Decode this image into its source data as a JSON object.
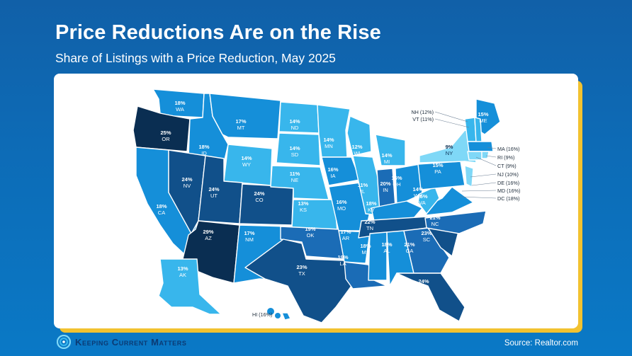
{
  "title": "Price Reductions Are on the Rise",
  "subtitle": "Share of Listings with a Price Reduction, May 2025",
  "source": "Source: Realtor.com",
  "logo_text": "Keeping Current Matters",
  "colors": {
    "background": "#0d6bb6",
    "accent": "#f2c230",
    "shades": [
      "#7fd8f7",
      "#38b6ec",
      "#158fd9",
      "#1b6cb6",
      "#11508a",
      "#0a2e52"
    ]
  },
  "chart_data": {
    "type": "choropleth",
    "states": [
      {
        "code": "WA",
        "value": 18,
        "label": "18%"
      },
      {
        "code": "OR",
        "value": 25,
        "label": "25%"
      },
      {
        "code": "CA",
        "value": 18,
        "label": "18%"
      },
      {
        "code": "ID",
        "value": 18,
        "label": "18%"
      },
      {
        "code": "NV",
        "value": 24,
        "label": "24%"
      },
      {
        "code": "MT",
        "value": 17,
        "label": "17%"
      },
      {
        "code": "WY",
        "value": 14,
        "label": "14%"
      },
      {
        "code": "UT",
        "value": 24,
        "label": "24%"
      },
      {
        "code": "AZ",
        "value": 29,
        "label": "29%"
      },
      {
        "code": "CO",
        "value": 24,
        "label": "24%"
      },
      {
        "code": "NM",
        "value": 17,
        "label": "17%"
      },
      {
        "code": "ND",
        "value": 14,
        "label": "14%"
      },
      {
        "code": "SD",
        "value": 14,
        "label": "14%"
      },
      {
        "code": "NE",
        "value": 11,
        "label": "11%"
      },
      {
        "code": "KS",
        "value": 13,
        "label": "13%"
      },
      {
        "code": "OK",
        "value": 19,
        "label": "19%"
      },
      {
        "code": "TX",
        "value": 23,
        "label": "23%"
      },
      {
        "code": "MN",
        "value": 14,
        "label": "14%"
      },
      {
        "code": "IA",
        "value": 16,
        "label": "16%"
      },
      {
        "code": "MO",
        "value": 16,
        "label": "16%"
      },
      {
        "code": "AR",
        "value": 17,
        "label": "17%"
      },
      {
        "code": "LA",
        "value": 19,
        "label": "19%"
      },
      {
        "code": "WI",
        "value": 12,
        "label": "12%"
      },
      {
        "code": "IL",
        "value": 11,
        "label": "11%"
      },
      {
        "code": "MI",
        "value": 14,
        "label": "14%"
      },
      {
        "code": "IN",
        "value": 20,
        "label": "20%"
      },
      {
        "code": "OH",
        "value": 16,
        "label": "16%"
      },
      {
        "code": "KY",
        "value": 18,
        "label": "18%"
      },
      {
        "code": "TN",
        "value": 22,
        "label": "22%"
      },
      {
        "code": "MS",
        "value": 18,
        "label": "18%"
      },
      {
        "code": "AL",
        "value": 18,
        "label": "18%"
      },
      {
        "code": "GA",
        "value": 21,
        "label": "21%"
      },
      {
        "code": "FL",
        "value": 24,
        "label": "24%"
      },
      {
        "code": "SC",
        "value": 23,
        "label": "23%"
      },
      {
        "code": "NC",
        "value": 21,
        "label": "21%"
      },
      {
        "code": "VA",
        "value": 15,
        "label": "15%"
      },
      {
        "code": "WV",
        "value": 14,
        "label": "14%"
      },
      {
        "code": "PA",
        "value": 15,
        "label": "15%"
      },
      {
        "code": "NY",
        "value": 9,
        "label": "9%"
      },
      {
        "code": "ME",
        "value": 15,
        "label": "15%"
      },
      {
        "code": "AK",
        "value": 13,
        "label": "13%"
      }
    ],
    "callouts": [
      {
        "code": "NH",
        "value": 12,
        "text": "NH (12%)"
      },
      {
        "code": "VT",
        "value": 11,
        "text": "VT (11%)"
      },
      {
        "code": "MA",
        "value": 16,
        "text": "MA (16%)"
      },
      {
        "code": "RI",
        "value": 9,
        "text": "RI (9%)"
      },
      {
        "code": "CT",
        "value": 9,
        "text": "CT (9%)"
      },
      {
        "code": "NJ",
        "value": 10,
        "text": "NJ (10%)"
      },
      {
        "code": "DE",
        "value": 16,
        "text": "DE (16%)"
      },
      {
        "code": "MD",
        "value": 16,
        "text": "MD (16%)"
      },
      {
        "code": "DC",
        "value": 18,
        "text": "DC (18%)"
      },
      {
        "code": "HI",
        "value": 16,
        "text": "HI (16%)"
      }
    ]
  }
}
